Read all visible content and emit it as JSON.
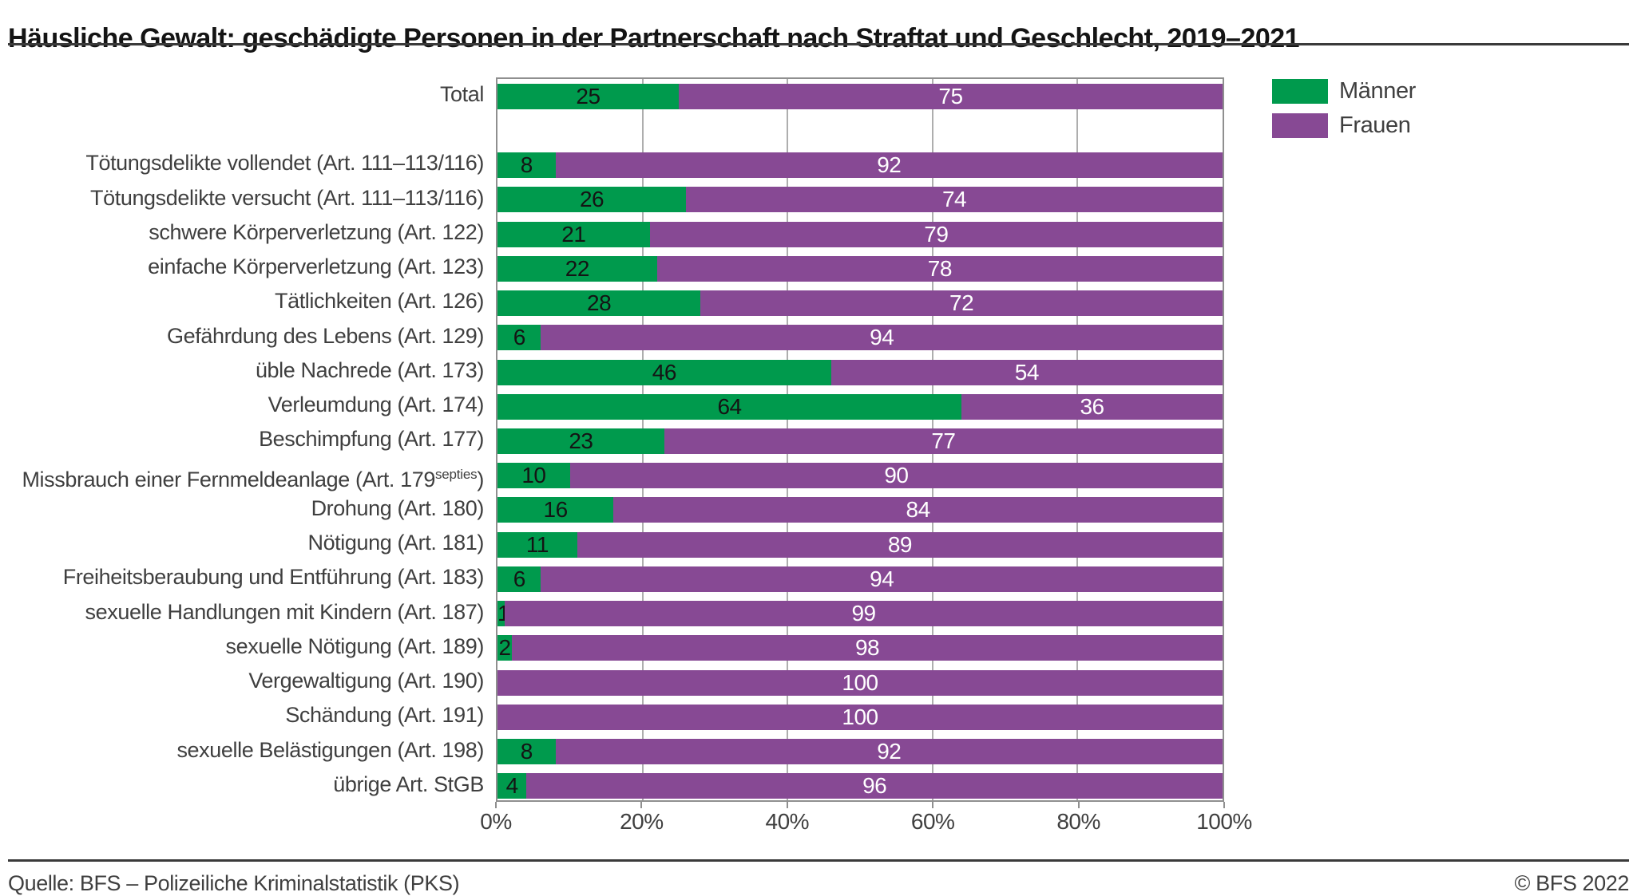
{
  "title": "Häusliche Gewalt: geschädigte Personen in der Partnerschaft nach Straftat und Geschlecht, 2019–2021",
  "footer": {
    "source": "Quelle: BFS – Polizeiliche Kriminalstatistik (PKS)",
    "copyright": "© BFS 2022"
  },
  "colors": {
    "maenner_green": "#009a4d",
    "frauen_purple": "#874994",
    "gridline_gray": "#aeaeae",
    "plot_border_gray": "#8f8f8f",
    "rule_dark": "#3a3a3a",
    "value_label_on_green": "#141414",
    "value_label_on_purple": "#ffffff"
  },
  "chart_data": {
    "type": "bar",
    "orientation": "horizontal",
    "stacked": true,
    "unit": "%",
    "xlim": [
      0,
      100
    ],
    "x_ticks": [
      "0%",
      "20%",
      "40%",
      "60%",
      "80%",
      "100%"
    ],
    "grid": "vertical-20pct-steps",
    "legend_position": "top-right",
    "gap_after_first_row": true,
    "categories": [
      {
        "label": "Total"
      },
      {
        "label": "Tötungsdelikte vollendet (Art. 111–113/116)"
      },
      {
        "label": "Tötungsdelikte versucht (Art. 111–113/116)"
      },
      {
        "label": "schwere Körperverletzung (Art. 122)"
      },
      {
        "label": "einfache Körperverletzung (Art. 123)"
      },
      {
        "label": "Tätlichkeiten (Art. 126)"
      },
      {
        "label": "Gefährdung des Lebens (Art. 129)"
      },
      {
        "label": "üble Nachrede (Art. 173)"
      },
      {
        "label": "Verleumdung (Art. 174)"
      },
      {
        "label": "Beschimpfung (Art. 177)"
      },
      {
        "label": "Missbrauch einer Fernmeldeanlage (Art. 179",
        "sup": "septies",
        "suffix": ")"
      },
      {
        "label": "Drohung (Art. 180)"
      },
      {
        "label": "Nötigung (Art. 181)"
      },
      {
        "label": "Freiheitsberaubung und Entführung (Art. 183)"
      },
      {
        "label": "sexuelle Handlungen mit Kindern (Art. 187)"
      },
      {
        "label": "sexuelle Nötigung (Art. 189)"
      },
      {
        "label": "Vergewaltigung (Art. 190)"
      },
      {
        "label": "Schändung (Art. 191)"
      },
      {
        "label": "sexuelle Belästigungen (Art. 198)"
      },
      {
        "label": "übrige Art. StGB"
      }
    ],
    "series": [
      {
        "name": "Männer",
        "color": "#009a4d",
        "values": [
          25,
          8,
          26,
          21,
          22,
          28,
          6,
          46,
          64,
          23,
          10,
          16,
          11,
          6,
          1,
          2,
          0,
          0,
          8,
          4
        ]
      },
      {
        "name": "Frauen",
        "color": "#874994",
        "values": [
          75,
          92,
          74,
          79,
          78,
          72,
          94,
          54,
          36,
          77,
          90,
          84,
          89,
          94,
          99,
          98,
          100,
          100,
          92,
          96
        ]
      }
    ]
  }
}
